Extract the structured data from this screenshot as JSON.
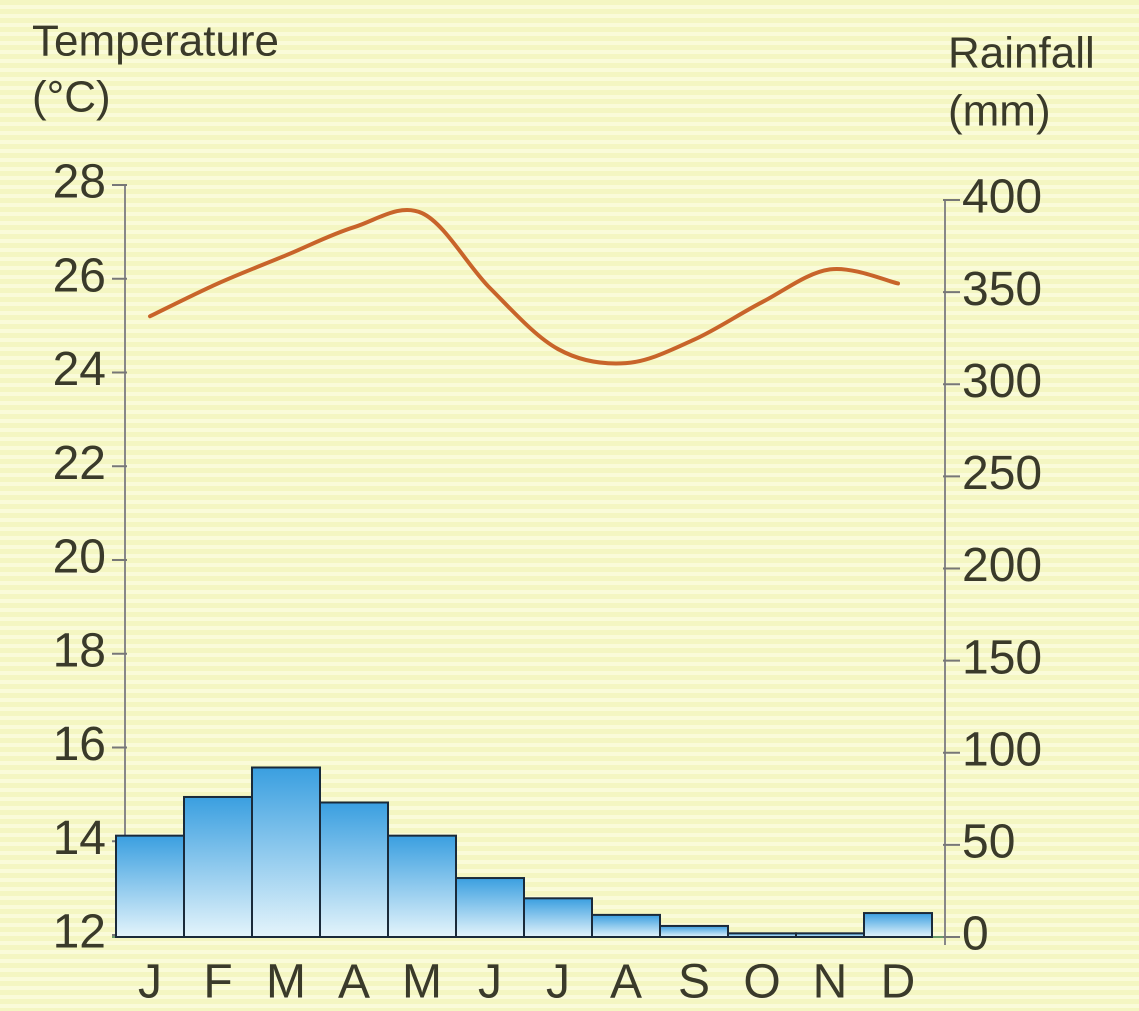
{
  "chart_data": {
    "type": "bar",
    "ylabel": [
      "Temperature",
      "(°C)"
    ],
    "y2label": [
      "Rainfall",
      "(mm)"
    ],
    "categories": [
      "J",
      "F",
      "M",
      "A",
      "M",
      "J",
      "J",
      "A",
      "S",
      "O",
      "N",
      "D"
    ],
    "series": [
      {
        "name": "Rainfall",
        "type": "bar",
        "axis": "y2",
        "color": "#3a9fe0",
        "values": [
          55,
          76,
          92,
          73,
          55,
          32,
          21,
          12,
          6,
          2,
          2,
          13
        ]
      },
      {
        "name": "Temperature",
        "type": "line",
        "axis": "y",
        "color": "#c8642a",
        "values": [
          25.2,
          25.9,
          26.5,
          27.1,
          27.4,
          25.8,
          24.5,
          24.2,
          24.7,
          25.5,
          26.2,
          25.9
        ]
      }
    ],
    "ylim": [
      12,
      28
    ],
    "yticks": [
      12,
      14,
      16,
      18,
      20,
      22,
      24,
      26,
      28
    ],
    "y2lim": [
      0,
      400
    ],
    "y2ticks": [
      0,
      50,
      100,
      150,
      200,
      250,
      300,
      350,
      400
    ]
  }
}
